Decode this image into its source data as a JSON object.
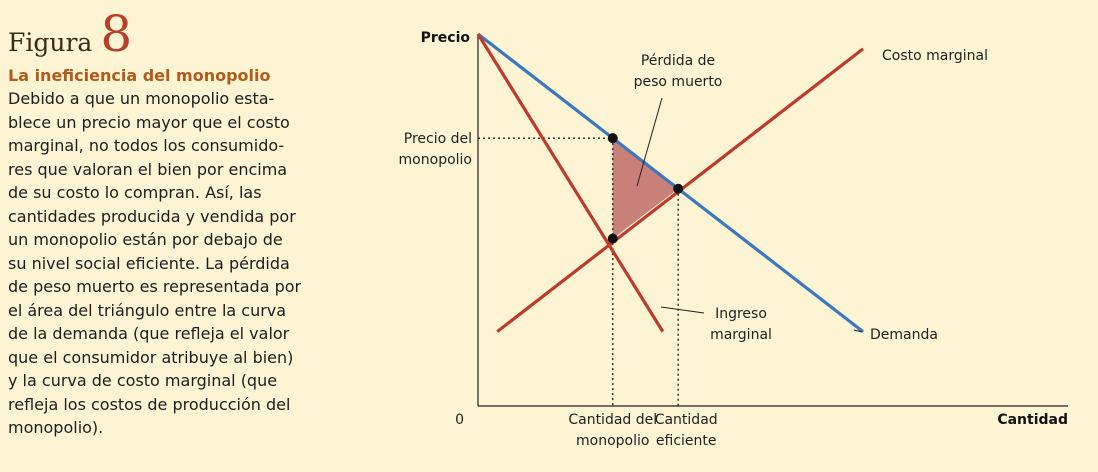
{
  "figure": {
    "word": "Figura",
    "number": "8"
  },
  "caption": {
    "title": "La ineficiencia del monopolio",
    "lines": [
      "Debido a que un monopolio esta-",
      "blece un precio mayor que el costo",
      "marginal, no todos los consumido-",
      "res que valoran el bien por encima",
      "de su costo lo compran. Así, las",
      "cantidades producida y vendida por",
      "un monopolio están por debajo de",
      "su nivel social eficiente. La pérdida",
      "de peso muerto es representada por",
      "el área del triángulo entre la curva",
      "de la demanda (que refleja el valor",
      "que el consumidor atribuye al bien)",
      "y la curva de costo marginal (que",
      "refleja los costos de producción del",
      "monopolio)."
    ]
  },
  "chart_data": {
    "type": "line",
    "ylabel": "Precio",
    "xlabel": "Cantidad",
    "origin_label": "0",
    "colors": {
      "demand": "#3a78bf",
      "marginal": "#bf3a2b",
      "deadweight": "#c98079",
      "background": "#fdf4d4"
    },
    "series": [
      {
        "name": "Demanda",
        "color": "#3a78bf",
        "label_lines": [
          "Demanda"
        ],
        "points": [
          [
            0,
            100
          ],
          [
            100,
            20
          ]
        ]
      },
      {
        "name": "Ingreso marginal",
        "color": "#bf3a2b",
        "label_lines": [
          "Ingreso",
          "marginal"
        ],
        "points": [
          [
            0,
            100
          ],
          [
            48,
            20
          ]
        ]
      },
      {
        "name": "Costo marginal",
        "color": "#bf3a2b",
        "label_lines": [
          "Costo marginal"
        ],
        "points": [
          [
            5,
            20
          ],
          [
            100,
            96
          ]
        ]
      }
    ],
    "markers": {
      "monopoly_quantity": 35,
      "monopoly_price": 72,
      "efficient_quantity": 52,
      "efficient_price": 58.4,
      "mc_at_monopoly_quantity": 45
    },
    "annotations": {
      "monopoly_price": [
        "Precio del",
        "monopolio"
      ],
      "monopoly_quantity": [
        "Cantidad del",
        "monopolio"
      ],
      "efficient_quantity": [
        "Cantidad",
        "eficiente"
      ],
      "deadweight": [
        "Pérdida de",
        "peso muerto"
      ]
    }
  }
}
